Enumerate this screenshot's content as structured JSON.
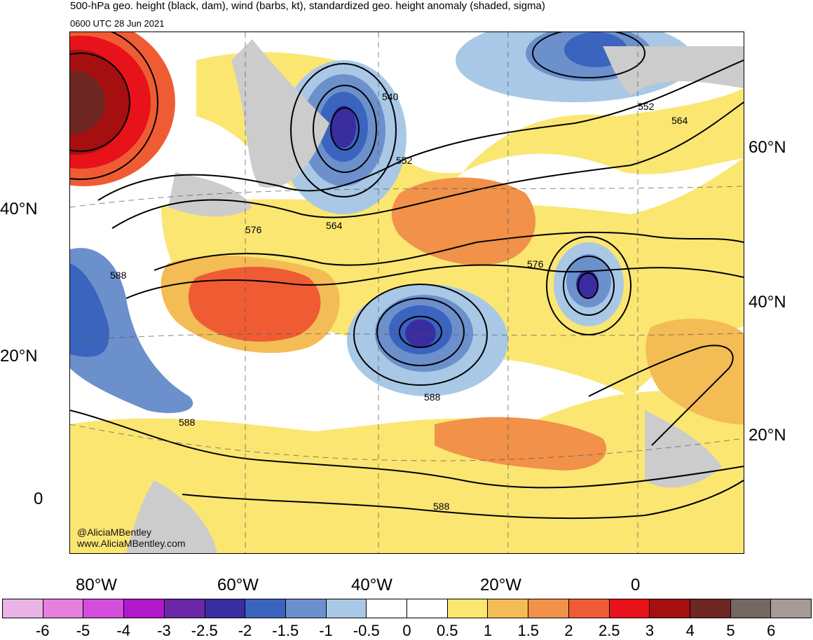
{
  "header": {
    "title": "500-hPa geo. height (black, dam), wind (barbs, kt), standardized geo. height anomaly (shaded, sigma)",
    "valid_time": "0600 UTC 28 Jun 2021"
  },
  "map": {
    "lat_labels_left": [
      "40°N",
      "20°N",
      "0"
    ],
    "lat_labels_right": [
      "60°N",
      "40°N",
      "20°N"
    ],
    "lon_labels": [
      "80°W",
      "60°W",
      "40°W",
      "20°W",
      "0"
    ],
    "contour_labels": [
      "540",
      "552",
      "552",
      "564",
      "564",
      "576",
      "576",
      "588",
      "588",
      "588",
      "588"
    ],
    "credit": [
      "@AliciaMBentley",
      "www.AliciaMBentley.com"
    ]
  },
  "colorbar": {
    "colors": [
      "#ebb4e6",
      "#e57fe0",
      "#d44ddc",
      "#b118cc",
      "#6a28a8",
      "#3a2da0",
      "#3a64be",
      "#6c90cc",
      "#a8c8e6",
      "#ffffff",
      "#ffffff",
      "#fbe672",
      "#f4bc55",
      "#f1914a",
      "#ef5c34",
      "#e8121a",
      "#a50f10",
      "#6e2622",
      "#756762",
      "#a89a96"
    ],
    "ticks": [
      "-6",
      "-5",
      "-4",
      "-3",
      "-2.5",
      "-2",
      "-1.5",
      "-1",
      "-0.5",
      "0",
      "0.5",
      "1",
      "1.5",
      "2",
      "2.5",
      "3",
      "4",
      "5",
      "6"
    ]
  }
}
